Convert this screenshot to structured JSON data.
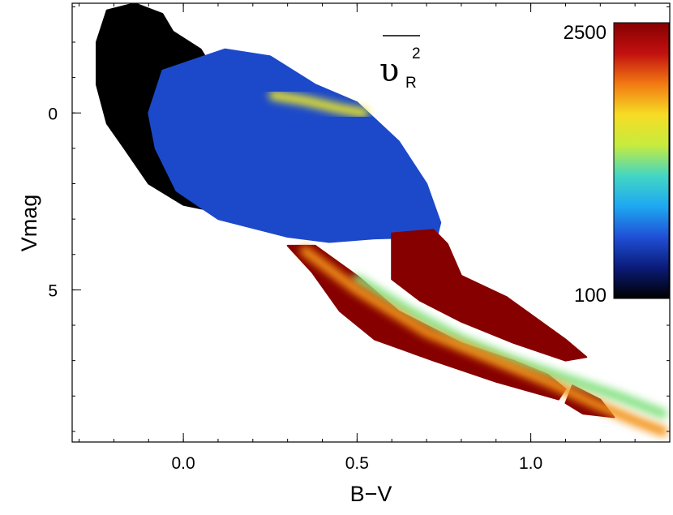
{
  "chart_data": {
    "type": "heatmap",
    "title": "",
    "xlabel": "B−V",
    "ylabel": "Vmag",
    "xlim": [
      -0.32,
      1.4
    ],
    "ylim": [
      9.3,
      -3.1
    ],
    "y_inverted": true,
    "x_ticks": [
      {
        "value": 0.0,
        "label": "0.0"
      },
      {
        "value": 0.5,
        "label": "0.5"
      },
      {
        "value": 1.0,
        "label": "1.0"
      }
    ],
    "y_ticks": [
      {
        "value": 0,
        "label": "0"
      },
      {
        "value": 5,
        "label": "5"
      }
    ],
    "annotation": {
      "symbol": "υ",
      "subscript": "R",
      "superscript": "2",
      "overline": true
    },
    "colorbar": {
      "min": 100,
      "max": 2500,
      "min_label": "100",
      "max_label": "2500",
      "colormap": "jet",
      "colors": [
        "#000000",
        "#0a1b78",
        "#1f4fd6",
        "#1ea7f2",
        "#42d6c4",
        "#c6ec3e",
        "#f7dc25",
        "#f27a12",
        "#c21010",
        "#860000"
      ]
    },
    "regions": [
      {
        "name": "black region (low values)",
        "value": 100,
        "polygon": [
          [
            -0.22,
            -2.9
          ],
          [
            -0.14,
            -3.1
          ],
          [
            -0.06,
            -2.8
          ],
          [
            -0.03,
            -2.3
          ],
          [
            0.05,
            -1.8
          ],
          [
            0.1,
            -1.0
          ],
          [
            0.02,
            0.2
          ],
          [
            -0.02,
            1.2
          ],
          [
            0.05,
            2.2
          ],
          [
            0.25,
            2.8
          ],
          [
            0.35,
            3.3
          ],
          [
            0.2,
            3.0
          ],
          [
            0.0,
            2.6
          ],
          [
            -0.1,
            2.0
          ],
          [
            -0.17,
            1.0
          ],
          [
            -0.22,
            0.3
          ],
          [
            -0.25,
            -0.8
          ],
          [
            -0.25,
            -2.0
          ]
        ]
      },
      {
        "name": "blue envelope",
        "value": 600,
        "polygon": [
          [
            -0.06,
            -1.2
          ],
          [
            0.12,
            -1.8
          ],
          [
            0.25,
            -1.6
          ],
          [
            0.38,
            -0.8
          ],
          [
            0.5,
            -0.3
          ],
          [
            0.62,
            0.8
          ],
          [
            0.7,
            2.0
          ],
          [
            0.74,
            3.1
          ],
          [
            0.73,
            3.5
          ],
          [
            0.55,
            3.55
          ],
          [
            0.42,
            3.65
          ],
          [
            0.3,
            3.5
          ],
          [
            0.1,
            3.0
          ],
          [
            -0.02,
            2.2
          ],
          [
            -0.08,
            1.0
          ],
          [
            -0.1,
            0.0
          ]
        ]
      },
      {
        "name": "upper-right red region",
        "value": 2500,
        "polygon": [
          [
            0.6,
            3.4
          ],
          [
            0.72,
            3.3
          ],
          [
            0.76,
            3.7
          ],
          [
            0.8,
            4.6
          ],
          [
            0.93,
            5.2
          ],
          [
            1.1,
            6.4
          ],
          [
            1.16,
            6.9
          ],
          [
            1.1,
            7.0
          ],
          [
            0.95,
            6.5
          ],
          [
            0.8,
            5.9
          ],
          [
            0.68,
            5.3
          ],
          [
            0.6,
            4.7
          ]
        ]
      },
      {
        "name": "lower-left red region",
        "value": 2500,
        "polygon": [
          [
            0.3,
            3.75
          ],
          [
            0.38,
            3.75
          ],
          [
            0.5,
            4.6
          ],
          [
            0.62,
            5.6
          ],
          [
            0.8,
            6.5
          ],
          [
            0.95,
            7.0
          ],
          [
            1.05,
            7.4
          ],
          [
            1.1,
            7.8
          ],
          [
            1.08,
            8.1
          ],
          [
            0.9,
            7.6
          ],
          [
            0.72,
            7.0
          ],
          [
            0.55,
            6.4
          ],
          [
            0.45,
            5.6
          ],
          [
            0.37,
            4.5
          ]
        ]
      },
      {
        "name": "bottom-right red region",
        "value": 2500,
        "polygon": [
          [
            1.12,
            7.7
          ],
          [
            1.2,
            8.1
          ],
          [
            1.24,
            8.6
          ],
          [
            1.15,
            8.5
          ],
          [
            1.1,
            8.2
          ]
        ]
      }
    ],
    "ridges": [
      {
        "name": "bright horizontal streak",
        "value": 1600,
        "points": [
          [
            0.26,
            -0.5
          ],
          [
            0.35,
            -0.35
          ],
          [
            0.45,
            -0.12
          ],
          [
            0.52,
            0.0
          ]
        ]
      },
      {
        "name": "hot spot at streak origin",
        "value": 2300,
        "points": [
          [
            0.27,
            -0.45
          ],
          [
            0.28,
            -0.45
          ]
        ]
      },
      {
        "name": "cyan ridge along main band",
        "value": 1300,
        "points": [
          [
            0.5,
            4.7
          ],
          [
            0.65,
            5.6
          ],
          [
            0.8,
            6.4
          ],
          [
            0.95,
            7.0
          ],
          [
            1.1,
            7.5
          ],
          [
            1.25,
            8.0
          ],
          [
            1.38,
            8.5
          ]
        ]
      },
      {
        "name": "yellow ridge along lower red boundary",
        "value": 1900,
        "points": [
          [
            0.35,
            3.9
          ],
          [
            0.5,
            5.0
          ],
          [
            0.7,
            6.2
          ],
          [
            0.9,
            7.0
          ],
          [
            1.05,
            7.6
          ],
          [
            1.18,
            8.2
          ],
          [
            1.3,
            8.7
          ],
          [
            1.38,
            9.0
          ]
        ]
      }
    ]
  }
}
